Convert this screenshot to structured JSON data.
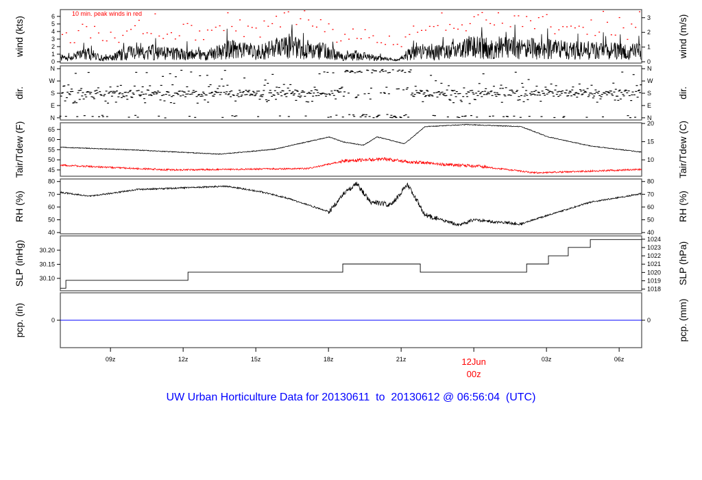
{
  "chart_data": {
    "type": "line",
    "title": "UW Urban Horticulture Data for 20130611  to  20130612 @ 06:56:04  (UTC)",
    "annotation": "10 min. peak winds in red",
    "colors": {
      "main": "#000000",
      "peak": "#ff0000",
      "dew": "#ff0000",
      "pcp": "#0000ff",
      "title": "#0000ff",
      "frame": "#555555"
    },
    "x_range_hours": [
      6.93,
      30.93
    ],
    "x_ticks": [
      {
        "h": 9,
        "label": "09z"
      },
      {
        "h": 12,
        "label": "12z"
      },
      {
        "h": 15,
        "label": "15z"
      },
      {
        "h": 18,
        "label": "18z"
      },
      {
        "h": 21,
        "label": "21z"
      },
      {
        "h": 24,
        "label": "00z",
        "date": "12Jun"
      },
      {
        "h": 27,
        "label": "03z"
      },
      {
        "h": 30,
        "label": "06z"
      }
    ],
    "panels": [
      {
        "id": "wind",
        "left_label": "wind (kts)",
        "right_label": "wind (m/s)",
        "ylim": [
          -0.18,
          6.9
        ],
        "right_ylim": [
          -0.09,
          3.55
        ],
        "left_ticks": [
          {
            "v": 0,
            "t": "0"
          },
          {
            "v": 1,
            "t": "1"
          },
          {
            "v": 2,
            "t": "2"
          },
          {
            "v": 3,
            "t": "3"
          },
          {
            "v": 4,
            "t": "4"
          },
          {
            "v": 5,
            "t": "5"
          },
          {
            "v": 6,
            "t": "6"
          }
        ],
        "right_ticks": [
          {
            "v": 0,
            "t": "0"
          },
          {
            "v": 1,
            "t": "1"
          },
          {
            "v": 2,
            "t": "2"
          },
          {
            "v": 3,
            "t": "3"
          }
        ]
      },
      {
        "id": "dir",
        "left_label": "dir.",
        "right_label": "dir.",
        "ylim": [
          -16,
          381
        ],
        "right_ylim": [
          -16,
          381
        ],
        "left_ticks": [
          {
            "v": 0,
            "t": "N"
          },
          {
            "v": 90,
            "t": "E"
          },
          {
            "v": 180,
            "t": "S"
          },
          {
            "v": 270,
            "t": "W"
          },
          {
            "v": 360,
            "t": "N"
          }
        ],
        "right_ticks": [
          {
            "v": 0,
            "t": "N"
          },
          {
            "v": 90,
            "t": "E"
          },
          {
            "v": 180,
            "t": "S"
          },
          {
            "v": 270,
            "t": "W"
          },
          {
            "v": 360,
            "t": "N"
          }
        ]
      },
      {
        "id": "temp",
        "left_label": "Tair/Tdew (F)",
        "right_label": "Tair/Tdew (C)",
        "ylim": [
          41.9,
          68.3
        ],
        "right_ylim": [
          5.5,
          20.2
        ],
        "left_ticks": [
          {
            "v": 45,
            "t": "45"
          },
          {
            "v": 50,
            "t": "50"
          },
          {
            "v": 55,
            "t": "55"
          },
          {
            "v": 60,
            "t": "60"
          },
          {
            "v": 65,
            "t": "65"
          }
        ],
        "right_ticks": [
          {
            "v": 10,
            "t": "10"
          },
          {
            "v": 15,
            "t": "15"
          },
          {
            "v": 20,
            "t": "20"
          }
        ]
      },
      {
        "id": "rh",
        "left_label": "RH (%)",
        "right_label": "RH (%)",
        "ylim": [
          39,
          82
        ],
        "right_ylim": [
          39,
          82
        ],
        "left_ticks": [
          {
            "v": 40,
            "t": "40"
          },
          {
            "v": 50,
            "t": "50"
          },
          {
            "v": 60,
            "t": "60"
          },
          {
            "v": 70,
            "t": "70"
          },
          {
            "v": 80,
            "t": "80"
          }
        ],
        "right_ticks": [
          {
            "v": 40,
            "t": "40"
          },
          {
            "v": 50,
            "t": "50"
          },
          {
            "v": 60,
            "t": "60"
          },
          {
            "v": 70,
            "t": "70"
          },
          {
            "v": 80,
            "t": "80"
          }
        ]
      },
      {
        "id": "slp",
        "left_label": "SLP (inHg)",
        "right_label": "SLP (hPa)",
        "ylim": [
          30.056,
          30.251
        ],
        "right_ylim": [
          1017.8,
          1024.4
        ],
        "left_ticks": [
          {
            "v": 30.1,
            "t": "30.10"
          },
          {
            "v": 30.15,
            "t": "30.15"
          },
          {
            "v": 30.2,
            "t": "30.20"
          }
        ],
        "right_ticks": [
          {
            "v": 1018,
            "t": "1018"
          },
          {
            "v": 1019,
            "t": "1019"
          },
          {
            "v": 1020,
            "t": "1020"
          },
          {
            "v": 1021,
            "t": "1021"
          },
          {
            "v": 1022,
            "t": "1022"
          },
          {
            "v": 1023,
            "t": "1023"
          },
          {
            "v": 1024,
            "t": "1024"
          }
        ]
      },
      {
        "id": "pcp",
        "left_label": "pcp. (in)",
        "right_label": "pcp. (mm)",
        "ylim": [
          -1,
          1
        ],
        "right_ylim": [
          -1,
          1
        ],
        "left_ticks": [
          {
            "v": 0,
            "t": "0"
          }
        ],
        "right_ticks": [
          {
            "v": 0,
            "t": "0"
          }
        ]
      }
    ],
    "series": {
      "wind_mean_kts": [
        [
          6.93,
          0.5
        ],
        [
          7.27,
          0.4
        ],
        [
          8.12,
          1.0
        ],
        [
          8.68,
          0.3
        ],
        [
          10.1,
          1.3
        ],
        [
          11.52,
          1.0
        ],
        [
          12.93,
          0.8
        ],
        [
          13.78,
          1.5
        ],
        [
          15.19,
          1.2
        ],
        [
          16.33,
          1.8
        ],
        [
          18.03,
          1.2
        ],
        [
          18.59,
          0.5
        ],
        [
          19.16,
          0.8
        ],
        [
          20.29,
          0.3
        ],
        [
          20.86,
          0.2
        ],
        [
          21.42,
          1.0
        ],
        [
          22.84,
          1.2
        ],
        [
          24.25,
          1.8
        ],
        [
          27.08,
          1.5
        ],
        [
          30.93,
          1.2
        ]
      ],
      "tair_F": [
        [
          6.93,
          56.2
        ],
        [
          10.1,
          54.8
        ],
        [
          13.5,
          52.8
        ],
        [
          15.76,
          55.2
        ],
        [
          18.03,
          61.3
        ],
        [
          18.59,
          58.9
        ],
        [
          19.44,
          57.2
        ],
        [
          20.01,
          61.3
        ],
        [
          20.29,
          60.5
        ],
        [
          21.14,
          57.9
        ],
        [
          21.99,
          66.4
        ],
        [
          23.69,
          67.4
        ],
        [
          25.95,
          66.4
        ],
        [
          27.08,
          61.3
        ],
        [
          28.78,
          56.9
        ],
        [
          30.93,
          53.8
        ]
      ],
      "tdew_F": [
        [
          6.93,
          47.4
        ],
        [
          8.68,
          46.4
        ],
        [
          11.52,
          45.0
        ],
        [
          17.18,
          45.7
        ],
        [
          18.59,
          49.4
        ],
        [
          20.29,
          50.4
        ],
        [
          21.42,
          49.0
        ],
        [
          22.84,
          47.7
        ],
        [
          24.25,
          46.7
        ],
        [
          26.52,
          43.6
        ],
        [
          28.5,
          44.3
        ],
        [
          30.93,
          45.3
        ]
      ],
      "rh_pct": [
        [
          6.93,
          71.6
        ],
        [
          8.12,
          68.4
        ],
        [
          10.1,
          73.7
        ],
        [
          13.78,
          76.3
        ],
        [
          15.19,
          72.1
        ],
        [
          16.33,
          66.8
        ],
        [
          18.03,
          56.3
        ],
        [
          18.59,
          69.5
        ],
        [
          19.16,
          78.4
        ],
        [
          19.72,
          64.2
        ],
        [
          20.57,
          61.6
        ],
        [
          21.28,
          77.4
        ],
        [
          21.99,
          53.7
        ],
        [
          23.4,
          45.8
        ],
        [
          23.97,
          50.0
        ],
        [
          25.95,
          46.8
        ],
        [
          27.08,
          53.7
        ],
        [
          28.78,
          63.7
        ],
        [
          30.93,
          70.5
        ]
      ],
      "slp_inHg_steps": [
        [
          6.93,
          30.065
        ],
        [
          7.16,
          30.093
        ],
        [
          12.2,
          30.122
        ],
        [
          18.59,
          30.151
        ],
        [
          21.79,
          30.122
        ],
        [
          26.18,
          30.151
        ],
        [
          27.08,
          30.18
        ],
        [
          27.9,
          30.21
        ],
        [
          28.81,
          30.238
        ]
      ],
      "pcp_in": [
        [
          6.93,
          0
        ],
        [
          30.93,
          0
        ]
      ]
    }
  }
}
